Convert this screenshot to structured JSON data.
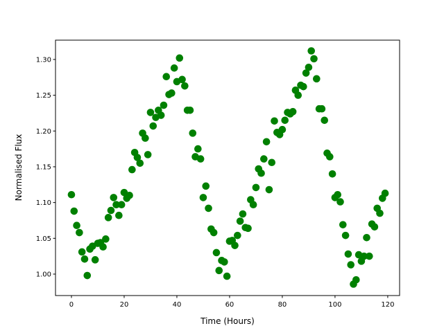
{
  "chart_data": {
    "type": "scatter",
    "title": "",
    "xlabel": "Time (Hours)",
    "ylabel": "Normalised Flux",
    "xlim": [
      -6.05,
      124.5
    ],
    "ylim": [
      0.97,
      1.327
    ],
    "xticks": [
      0,
      20,
      40,
      60,
      80,
      100,
      120
    ],
    "xtick_labels": [
      "0",
      "20",
      "40",
      "60",
      "80",
      "100",
      "120"
    ],
    "yticks": [
      1.0,
      1.05,
      1.1,
      1.15,
      1.2,
      1.25,
      1.3
    ],
    "ytick_labels": [
      "1.00",
      "1.05",
      "1.10",
      "1.15",
      "1.20",
      "1.25",
      "1.30"
    ],
    "grid": false,
    "marker_color": "#008000",
    "x": [
      0,
      1,
      2,
      3,
      4,
      5,
      6,
      7,
      8,
      9,
      10,
      11,
      12,
      13,
      14,
      15,
      16,
      17,
      18,
      19,
      20,
      21,
      22,
      23,
      24,
      25,
      26,
      27,
      28,
      29,
      30,
      31,
      32,
      33,
      34,
      35,
      36,
      37,
      38,
      39,
      40,
      41,
      42,
      43,
      44,
      45,
      46,
      47,
      48,
      49,
      50,
      51,
      52,
      53,
      54,
      55,
      56,
      57,
      58,
      59,
      60,
      61,
      62,
      63,
      64,
      65,
      66,
      67,
      68,
      69,
      70,
      71,
      72,
      73,
      74,
      75,
      76,
      77,
      78,
      79,
      80,
      81,
      82,
      83,
      84,
      85,
      86,
      87,
      88,
      89,
      90,
      91,
      92,
      93,
      94,
      95,
      96,
      97,
      98,
      99,
      100,
      101,
      102,
      103,
      104,
      105,
      106,
      107,
      108,
      109,
      110,
      111,
      112,
      113,
      114,
      115,
      116,
      117,
      118,
      119
    ],
    "y": [
      1.111,
      1.088,
      1.068,
      1.058,
      1.031,
      1.021,
      0.998,
      1.035,
      1.039,
      1.02,
      1.043,
      1.044,
      1.038,
      1.049,
      1.079,
      1.089,
      1.107,
      1.097,
      1.082,
      1.097,
      1.114,
      1.106,
      1.11,
      1.146,
      1.17,
      1.163,
      1.155,
      1.197,
      1.19,
      1.167,
      1.226,
      1.207,
      1.219,
      1.229,
      1.222,
      1.236,
      1.276,
      1.251,
      1.253,
      1.288,
      1.269,
      1.302,
      1.272,
      1.263,
      1.229,
      1.229,
      1.197,
      1.164,
      1.175,
      1.161,
      1.107,
      1.123,
      1.092,
      1.063,
      1.058,
      1.03,
      1.005,
      1.019,
      1.017,
      0.997,
      1.046,
      1.047,
      1.04,
      1.054,
      1.074,
      1.084,
      1.065,
      1.064,
      1.104,
      1.097,
      1.121,
      1.147,
      1.141,
      1.161,
      1.185,
      1.118,
      1.156,
      1.214,
      1.198,
      1.195,
      1.202,
      1.215,
      1.226,
      1.224,
      1.227,
      1.257,
      1.25,
      1.264,
      1.262,
      1.281,
      1.289,
      1.312,
      1.301,
      1.273,
      1.231,
      1.231,
      1.215,
      1.169,
      1.164,
      1.14,
      1.107,
      1.111,
      1.101,
      1.069,
      1.054,
      1.028,
      1.013,
      0.986,
      0.992,
      1.027,
      1.018,
      1.025,
      1.051,
      1.025,
      1.07,
      1.066,
      1.092,
      1.085,
      1.106,
      1.113
    ]
  }
}
